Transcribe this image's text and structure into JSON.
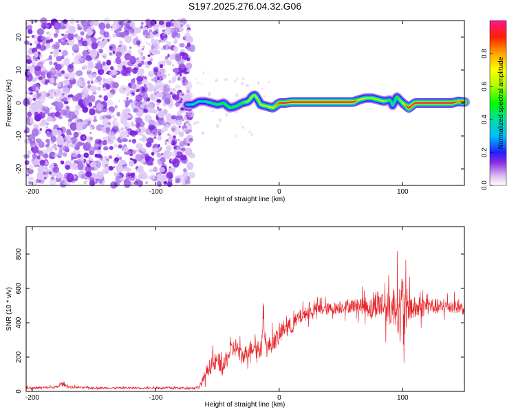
{
  "title": "S197.2025.276.04.32.G06",
  "chart_data": [
    {
      "type": "heatmap",
      "xlabel": "Height of straight line (km)",
      "ylabel": "Frequency (Hz)",
      "xlim": [
        -205,
        150
      ],
      "ylim": [
        -25,
        25
      ],
      "xticks": [
        -200,
        -100,
        0,
        100
      ],
      "yticks": [
        -20,
        -10,
        0,
        10,
        20
      ],
      "noise_region_x": [
        -205,
        -75
      ],
      "ridge": {
        "x": [
          -75,
          -70,
          -65,
          -60,
          -55,
          -50,
          -45,
          -40,
          -35,
          -30,
          -25,
          -22,
          -20,
          -18,
          -15,
          -10,
          -5,
          0,
          5,
          10,
          20,
          30,
          40,
          50,
          60,
          65,
          70,
          75,
          80,
          85,
          90,
          92,
          95,
          100,
          105,
          110,
          120,
          130,
          140,
          145,
          150
        ],
        "freq": [
          -0.5,
          -0.5,
          0.5,
          0.5,
          0,
          -0.5,
          0,
          -1.5,
          -1.0,
          0,
          0.5,
          2.0,
          2.5,
          1.5,
          -0.5,
          -1.0,
          -1.5,
          0,
          0,
          0.3,
          0.3,
          0.3,
          0.3,
          0.3,
          0.3,
          1.0,
          1.5,
          1.5,
          1.0,
          0.5,
          1.0,
          -1.0,
          2.0,
          0,
          -1.5,
          0,
          0,
          0,
          0,
          0.5,
          0.3
        ],
        "amplitude": [
          0.35,
          0.4,
          0.4,
          0.4,
          0.45,
          0.45,
          0.5,
          0.5,
          0.5,
          0.5,
          0.6,
          0.6,
          0.6,
          0.6,
          0.6,
          0.65,
          0.7,
          0.85,
          0.95,
          0.95,
          0.95,
          0.95,
          0.95,
          0.95,
          0.95,
          0.7,
          0.6,
          0.6,
          0.65,
          0.6,
          0.5,
          0.4,
          0.5,
          0.6,
          0.95,
          0.95,
          0.95,
          0.95,
          0.95,
          0.8,
          0.9
        ]
      },
      "colorbar": {
        "label": "Normalized spectral amplitude",
        "range": [
          0,
          1
        ],
        "ticks": [
          0.0,
          0.2,
          0.4,
          0.6,
          0.8
        ],
        "tick_labels": [
          "0.0",
          "0.2",
          "0.4",
          "0.6",
          "0.8"
        ]
      }
    },
    {
      "type": "line",
      "xlabel": "Height of straight line (km)",
      "ylabel": "SNR (10 * v/v)",
      "xlim": [
        -205,
        150
      ],
      "ylim": [
        0,
        960
      ],
      "xticks": [
        -200,
        -100,
        0,
        100
      ],
      "yticks": [
        0,
        200,
        400,
        600,
        800
      ],
      "color": "#e8262b",
      "series": [
        {
          "name": "SNR",
          "x": [
            -205,
            -190,
            -180,
            -176,
            -170,
            -150,
            -130,
            -110,
            -90,
            -70,
            -65,
            -62,
            -58,
            -55,
            -50,
            -45,
            -40,
            -35,
            -30,
            -25,
            -20,
            -15,
            -13,
            -10,
            -5,
            0,
            5,
            10,
            15,
            20,
            25,
            30,
            40,
            50,
            60,
            70,
            75,
            80,
            85,
            90,
            95,
            98,
            100,
            102,
            105,
            110,
            120,
            130,
            140,
            150
          ],
          "y": [
            20,
            22,
            25,
            45,
            25,
            20,
            20,
            20,
            20,
            20,
            25,
            60,
            130,
            150,
            180,
            140,
            230,
            260,
            200,
            240,
            270,
            230,
            420,
            250,
            290,
            320,
            380,
            380,
            420,
            450,
            460,
            480,
            480,
            490,
            500,
            500,
            480,
            520,
            500,
            470,
            520,
            450,
            500,
            450,
            500,
            480,
            500,
            490,
            500,
            480
          ],
          "noise_amplitude": [
            15,
            15,
            15,
            25,
            15,
            12,
            12,
            12,
            12,
            12,
            20,
            60,
            90,
            110,
            120,
            110,
            120,
            120,
            110,
            110,
            120,
            110,
            110,
            120,
            120,
            120,
            110,
            110,
            100,
            90,
            90,
            80,
            80,
            80,
            90,
            120,
            150,
            180,
            200,
            220,
            300,
            400,
            470,
            350,
            200,
            150,
            120,
            100,
            90,
            80
          ]
        }
      ]
    }
  ]
}
